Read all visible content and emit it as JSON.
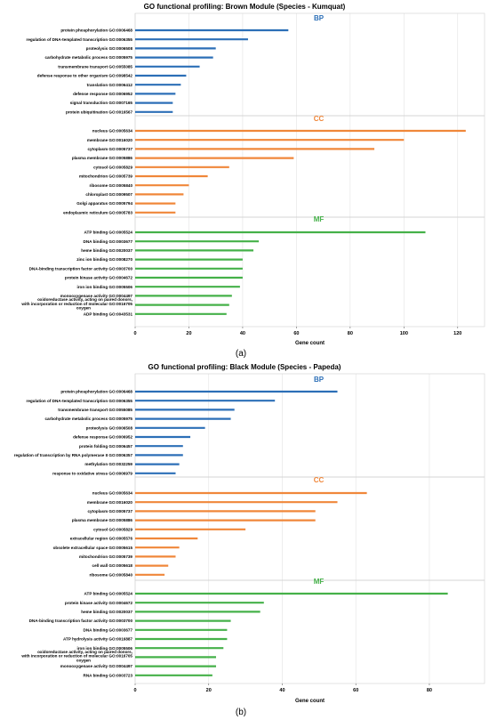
{
  "colors": {
    "BP": "#2c6fb7",
    "CC": "#f0873a",
    "MF": "#45b149"
  },
  "chart_data": [
    {
      "type": "bar",
      "orientation": "horizontal",
      "title": "GO functional profiling: Brown Module (Species - Kumquat)",
      "panel_label": "(a)",
      "xlabel": "Gene count",
      "xlim": [
        0,
        130
      ],
      "xticks": [
        "0",
        "20",
        "40",
        "60",
        "80",
        "100",
        "120"
      ],
      "grid": true,
      "groups": [
        {
          "name": "BP",
          "categories": [
            {
              "label": "protein phosphorylation GO:0006468",
              "value": 57
            },
            {
              "label": "regulation of DNA-templated transcription GO:0006355",
              "value": 42
            },
            {
              "label": "proteolysis GO:0006508",
              "value": 30
            },
            {
              "label": "carbohydrate metabolic process GO:0005975",
              "value": 29
            },
            {
              "label": "transmembrane transport GO:0055085",
              "value": 24
            },
            {
              "label": "defense response to other organism GO:0098542",
              "value": 19
            },
            {
              "label": "translation GO:0006412",
              "value": 17
            },
            {
              "label": "defense response GO:0006952",
              "value": 15
            },
            {
              "label": "signal transduction GO:0007165",
              "value": 14
            },
            {
              "label": "protein ubiquitination GO:0016567",
              "value": 14
            }
          ]
        },
        {
          "name": "CC",
          "categories": [
            {
              "label": "nucleus GO:0005634",
              "value": 123
            },
            {
              "label": "membrane GO:0016020",
              "value": 100
            },
            {
              "label": "cytoplasm GO:0005737",
              "value": 89
            },
            {
              "label": "plasma membrane GO:0005886",
              "value": 59
            },
            {
              "label": "cytosol GO:0005829",
              "value": 35
            },
            {
              "label": "mitochondrion GO:0005739",
              "value": 27
            },
            {
              "label": "ribosome GO:0005840",
              "value": 20
            },
            {
              "label": "chloroplast GO:0009507",
              "value": 18
            },
            {
              "label": "Golgi apparatus GO:0005794",
              "value": 15
            },
            {
              "label": "endoplasmic reticulum GO:0005783",
              "value": 15
            }
          ]
        },
        {
          "name": "MF",
          "categories": [
            {
              "label": "ATP binding GO:0005524",
              "value": 108
            },
            {
              "label": "DNA binding GO:0003677",
              "value": 46
            },
            {
              "label": "heme binding GO:0020037",
              "value": 44
            },
            {
              "label": "zinc ion binding GO:0008270",
              "value": 40
            },
            {
              "label": "DNA-binding transcription factor activity GO:0003700",
              "value": 40
            },
            {
              "label": "protein kinase activity GO:0004672",
              "value": 40
            },
            {
              "label": "iron ion binding GO:0005506",
              "value": 39
            },
            {
              "label": "monooxygenase activity GO:0004497",
              "value": 36
            },
            {
              "label": "oxidoreductase activity, acting on paired donors, with incorporation or reduction of molecular GO:0016705 oxygen",
              "value": 35
            },
            {
              "label": "ADP binding GO:0043531",
              "value": 34
            }
          ]
        }
      ]
    },
    {
      "type": "bar",
      "orientation": "horizontal",
      "title": "GO functional profiling: Black Module (Species - Papeda)",
      "panel_label": "(b)",
      "xlabel": "Gene count",
      "xlim": [
        0,
        95
      ],
      "xticks": [
        "0",
        "20",
        "40",
        "60",
        "80"
      ],
      "grid": true,
      "groups": [
        {
          "name": "BP",
          "categories": [
            {
              "label": "protein phosphorylation GO:0006468",
              "value": 55
            },
            {
              "label": "regulation of DNA-templated transcription GO:0006355",
              "value": 38
            },
            {
              "label": "transmembrane transport GO:0055085",
              "value": 27
            },
            {
              "label": "carbohydrate metabolic process GO:0005975",
              "value": 26
            },
            {
              "label": "proteolysis GO:0006508",
              "value": 19
            },
            {
              "label": "defense response GO:0006952",
              "value": 15
            },
            {
              "label": "protein folding GO:0006457",
              "value": 13
            },
            {
              "label": "regulation of transcription by RNA polymerase II GO:0006357",
              "value": 13
            },
            {
              "label": "methylation GO:0032259",
              "value": 12
            },
            {
              "label": "response to oxidative stress GO:0006979",
              "value": 11
            }
          ]
        },
        {
          "name": "CC",
          "categories": [
            {
              "label": "nucleus GO:0005634",
              "value": 63
            },
            {
              "label": "membrane GO:0016020",
              "value": 55
            },
            {
              "label": "cytoplasm GO:0005737",
              "value": 49
            },
            {
              "label": "plasma membrane GO:0005886",
              "value": 49
            },
            {
              "label": "cytosol GO:0005829",
              "value": 30
            },
            {
              "label": "extracellular region GO:0005576",
              "value": 17
            },
            {
              "label": "obsolete extracellular space GO:0005615",
              "value": 12
            },
            {
              "label": "mitochondrion GO:0005739",
              "value": 11
            },
            {
              "label": "cell wall GO:0005618",
              "value": 9
            },
            {
              "label": "ribosome GO:0005840",
              "value": 8
            }
          ]
        },
        {
          "name": "MF",
          "categories": [
            {
              "label": "ATP binding GO:0005524",
              "value": 85
            },
            {
              "label": "protein kinase activity GO:0004672",
              "value": 35
            },
            {
              "label": "heme binding GO:0020037",
              "value": 34
            },
            {
              "label": "DNA-binding transcription factor activity GO:0003700",
              "value": 26
            },
            {
              "label": "DNA binding GO:0003677",
              "value": 25
            },
            {
              "label": "ATP hydrolysis activity GO:0016887",
              "value": 25
            },
            {
              "label": "iron ion binding GO:0005506",
              "value": 24
            },
            {
              "label": "oxidoreductase activity, acting on paired donors, with incorporation or reduction of molecular GO:0016705 oxygen",
              "value": 22
            },
            {
              "label": "monooxygenase activity GO:0004497",
              "value": 22
            },
            {
              "label": "RNA binding GO:0003723",
              "value": 21
            }
          ]
        }
      ]
    }
  ]
}
